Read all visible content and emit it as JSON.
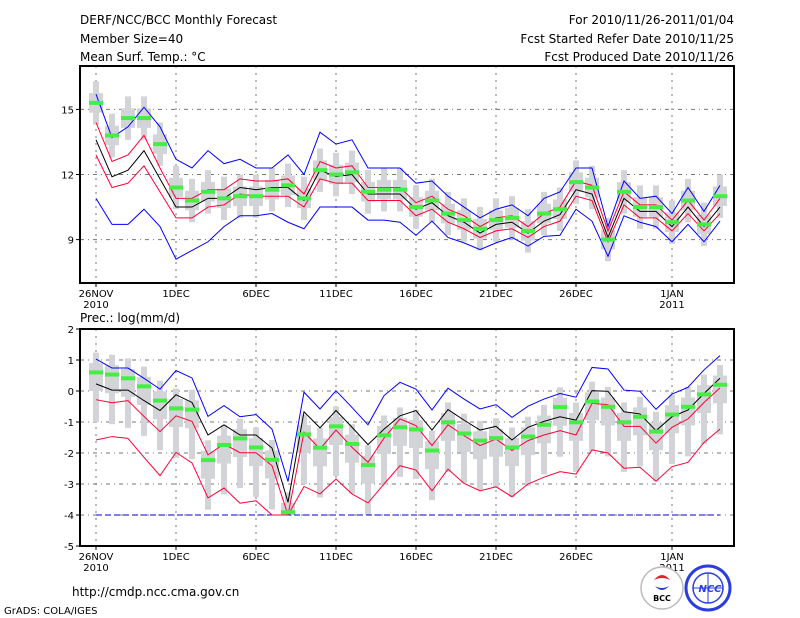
{
  "header": {
    "title": "DERF/NCC/BCC Monthly Forecast",
    "member_size": "Member Size=40",
    "variable": "Mean Surf. Temp.: °C",
    "period": "For 2010/11/26-2011/01/04",
    "started": "Fcst Started Refer Date 2010/11/25",
    "produced": "Fcst Produced Date 2010/11/26"
  },
  "footer": {
    "url": "http://cmdp.ncc.cma.gov.cn",
    "credit": "GrADS: COLA/IGES",
    "logo_bcc": "BCC",
    "logo_ncc": "NCC"
  },
  "colors": {
    "upper_lower": "#0000ff",
    "spread": "#ff0033",
    "mean": "#000000",
    "median": "#44ee44",
    "box": "#d3d4d8"
  },
  "chart_data": [
    {
      "type": "line",
      "title": "Mean Surf. Temp.: °C",
      "ylim": [
        7,
        17
      ],
      "yticks": [
        9,
        12,
        15
      ],
      "ytick_labels": [
        "9",
        "12",
        "15"
      ],
      "xticks": [
        0,
        5,
        10,
        15,
        20,
        25,
        30,
        36
      ],
      "xtick_labels": [
        "26NOV",
        "1DEC",
        "6DEC",
        "11DEC",
        "16DEC",
        "21DEC",
        "26DEC",
        "1JAN"
      ],
      "xtick_sublabels": {
        "0": "2010",
        "36": "2011"
      },
      "grid": true,
      "box_whisker": 1.0,
      "box_inner": 0.45,
      "series": [
        {
          "name": "max",
          "color": "#0000ff",
          "values": [
            15.7,
            13.7,
            14.2,
            15.1,
            14.2,
            12.7,
            12.3,
            13.1,
            12.5,
            12.7,
            12.3,
            12.3,
            12.9,
            12.0,
            13.95,
            13.4,
            13.6,
            12.3,
            12.3,
            12.3,
            11.6,
            11.7,
            11.0,
            10.5,
            10.0,
            10.4,
            10.6,
            10.1,
            10.9,
            11.2,
            12.3,
            12.3,
            9.6,
            11.7,
            10.9,
            11.0,
            10.2,
            11.4,
            10.3,
            11.5
          ]
        },
        {
          "name": "mean+sd",
          "color": "#ff0033",
          "values": [
            14.4,
            12.6,
            12.9,
            13.8,
            12.3,
            10.9,
            10.9,
            11.3,
            11.3,
            11.8,
            11.7,
            11.7,
            11.8,
            11.1,
            12.6,
            12.3,
            12.4,
            11.4,
            11.4,
            11.4,
            10.7,
            11.0,
            10.4,
            10.1,
            9.6,
            10.0,
            10.1,
            9.6,
            10.2,
            10.5,
            11.7,
            11.5,
            9.4,
            11.2,
            10.6,
            10.6,
            9.9,
            10.8,
            9.9,
            10.9
          ]
        },
        {
          "name": "mean",
          "color": "#000000",
          "values": [
            13.6,
            11.9,
            12.2,
            13.1,
            11.8,
            10.5,
            10.5,
            10.9,
            10.9,
            11.4,
            11.3,
            11.4,
            11.4,
            10.8,
            12.2,
            11.9,
            12.0,
            11.1,
            11.1,
            11.1,
            10.4,
            10.7,
            10.1,
            9.8,
            9.3,
            9.7,
            9.8,
            9.3,
            9.85,
            10.15,
            11.3,
            11.1,
            9.1,
            10.9,
            10.3,
            10.3,
            9.6,
            10.5,
            9.6,
            10.5
          ]
        },
        {
          "name": "mean-sd",
          "color": "#ff0033",
          "values": [
            12.9,
            11.4,
            11.6,
            12.4,
            11.2,
            10.0,
            10.0,
            10.5,
            10.6,
            11.1,
            11.0,
            11.0,
            11.0,
            10.5,
            11.8,
            11.6,
            11.6,
            10.8,
            10.8,
            10.8,
            10.1,
            10.4,
            9.8,
            9.5,
            9.1,
            9.4,
            9.5,
            9.1,
            9.6,
            9.85,
            11.0,
            10.8,
            8.9,
            10.6,
            10.0,
            10.0,
            9.4,
            10.2,
            9.4,
            10.2
          ]
        },
        {
          "name": "min",
          "color": "#0000ff",
          "values": [
            10.9,
            9.7,
            9.7,
            10.4,
            9.6,
            8.1,
            8.5,
            8.9,
            9.6,
            10.1,
            10.1,
            10.2,
            9.8,
            9.5,
            10.5,
            10.5,
            10.5,
            9.9,
            9.9,
            9.8,
            9.2,
            9.85,
            9.1,
            8.85,
            8.54,
            8.85,
            9.1,
            8.7,
            9.15,
            9.2,
            10.4,
            9.85,
            8.23,
            10.1,
            9.8,
            9.6,
            8.9,
            9.7,
            8.9,
            9.85
          ]
        }
      ],
      "median": [
        15.3,
        13.8,
        14.6,
        14.6,
        13.4,
        11.4,
        10.8,
        11.2,
        10.9,
        11.0,
        11.0,
        11.3,
        11.5,
        10.9,
        12.2,
        12.0,
        12.1,
        11.2,
        11.3,
        11.3,
        10.5,
        10.8,
        10.2,
        9.9,
        9.5,
        9.9,
        10.0,
        9.4,
        10.2,
        10.4,
        11.65,
        11.4,
        9.0,
        11.2,
        10.5,
        10.5,
        9.8,
        10.8,
        9.7,
        11.0
      ]
    },
    {
      "type": "line",
      "title": "Prec.: log(mm/d)",
      "ylim": [
        -5,
        2
      ],
      "yticks": [
        -5,
        -4,
        -3,
        -2,
        -1,
        0,
        1,
        2
      ],
      "ytick_labels": [
        "-5",
        "-4",
        "-3",
        "-2",
        "-1",
        "0",
        "1",
        "2"
      ],
      "xticks": [
        0,
        5,
        10,
        15,
        20,
        25,
        30,
        36
      ],
      "xtick_labels": [
        "26NOV",
        "1DEC",
        "6DEC",
        "11DEC",
        "16DEC",
        "21DEC",
        "26DEC",
        "1JAN"
      ],
      "xtick_sublabels": {
        "0": "2010",
        "36": "2011"
      },
      "grid": true,
      "floor": -4,
      "box_whisker": 1.6,
      "box_inner": 0.6,
      "series": [
        {
          "name": "max",
          "color": "#0000ff",
          "values": [
            1.03,
            0.74,
            0.74,
            0.41,
            0.06,
            0.66,
            0.42,
            -0.82,
            -0.47,
            -0.83,
            -0.76,
            -1.23,
            -2.92,
            -0.04,
            -0.58,
            0.01,
            -0.53,
            -1.09,
            -0.15,
            0.28,
            0.06,
            -0.61,
            0.09,
            -0.26,
            -0.58,
            -0.44,
            -0.85,
            -0.49,
            -0.26,
            -0.08,
            -0.2,
            0.76,
            0.71,
            0.03,
            -0.01,
            -0.59,
            -0.1,
            0.12,
            0.68,
            1.14
          ]
        },
        {
          "name": "mean",
          "color": "#000000",
          "values": [
            0.23,
            0.03,
            0.03,
            -0.31,
            -0.63,
            -0.12,
            -0.37,
            -1.42,
            -1.09,
            -1.42,
            -1.42,
            -1.84,
            -3.59,
            -0.67,
            -1.19,
            -0.63,
            -1.17,
            -1.73,
            -1.23,
            -0.8,
            -0.63,
            -1.26,
            -0.6,
            -0.94,
            -1.26,
            -1.14,
            -1.58,
            -1.17,
            -0.98,
            -0.83,
            -0.94,
            0.01,
            -0.01,
            -0.67,
            -0.74,
            -1.28,
            -0.83,
            -0.61,
            -0.08,
            0.41
          ]
        },
        {
          "name": "mean-sd",
          "color": "#ff0033",
          "values": [
            -0.28,
            -0.38,
            -0.31,
            -0.82,
            -1.31,
            -0.8,
            -0.98,
            -2.06,
            -1.71,
            -1.99,
            -1.99,
            -2.41,
            -4.0,
            -1.33,
            -1.87,
            -1.26,
            -1.82,
            -2.3,
            -1.52,
            -0.9,
            -1.12,
            -1.76,
            -1.09,
            -1.44,
            -1.76,
            -1.55,
            -1.92,
            -1.6,
            -1.42,
            -1.28,
            -1.42,
            -0.4,
            -0.44,
            -1.14,
            -1.14,
            -1.68,
            -1.17,
            -0.9,
            -0.37,
            0.1
          ]
        },
        {
          "name": "mean-2sd",
          "color": "#ff0033",
          "values": [
            -1.58,
            -1.47,
            -1.53,
            -2.14,
            -2.73,
            -1.98,
            -2.32,
            -3.45,
            -3.13,
            -3.62,
            -3.54,
            -4.0,
            -4.0,
            -3.08,
            -3.32,
            -2.84,
            -3.32,
            -3.61,
            -3.0,
            -2.41,
            -2.55,
            -3.22,
            -2.52,
            -2.98,
            -3.22,
            -3.09,
            -3.41,
            -3.0,
            -2.78,
            -2.6,
            -2.68,
            -1.9,
            -2.0,
            -2.49,
            -2.46,
            -2.91,
            -2.44,
            -2.3,
            -1.66,
            -1.23
          ]
        }
      ],
      "median": [
        0.6,
        0.53,
        0.41,
        0.15,
        -0.31,
        -0.56,
        -0.6,
        -2.23,
        -1.74,
        -1.53,
        -1.82,
        -2.22,
        -3.91,
        -1.4,
        -1.83,
        -1.14,
        -1.71,
        -2.39,
        -1.43,
        -1.17,
        -1.24,
        -1.92,
        -1.01,
        -1.37,
        -1.6,
        -1.52,
        -1.82,
        -1.47,
        -1.09,
        -0.52,
        -1.01,
        -0.34,
        -0.51,
        -1.01,
        -0.83,
        -1.31,
        -0.76,
        -0.51,
        -0.11,
        0.2
      ]
    }
  ]
}
